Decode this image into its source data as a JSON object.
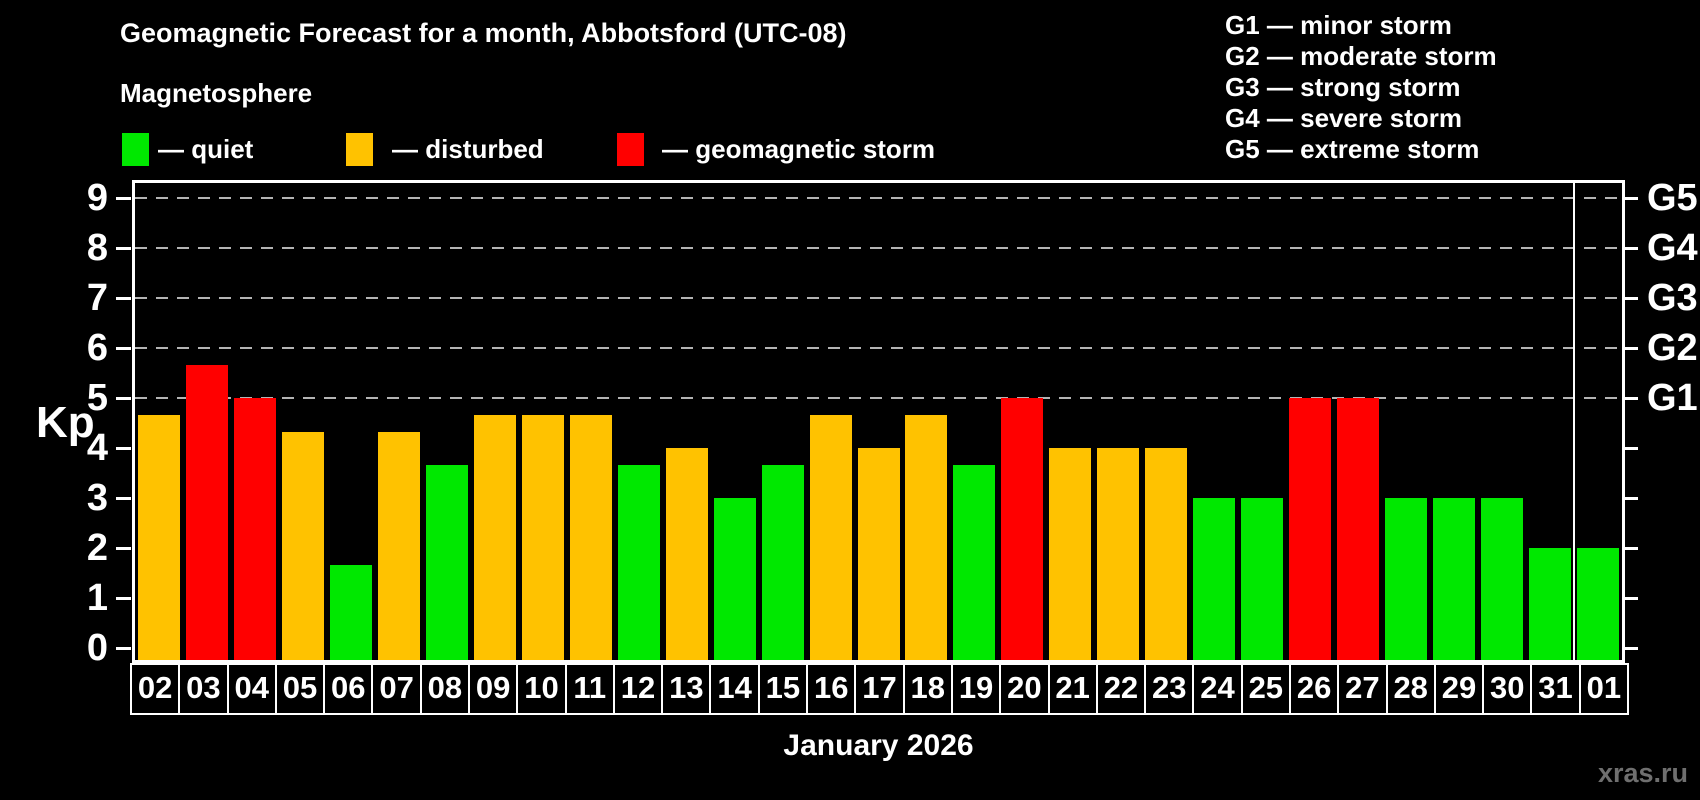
{
  "title": "Geomagnetic Forecast for a month, Abbotsford (UTC-08)",
  "subtitle": "Magnetosphere",
  "legend": {
    "quiet": "— quiet",
    "disturbed": "— disturbed",
    "storm": "— geomagnetic storm"
  },
  "g_legend": [
    "G1 — minor storm",
    "G2 — moderate storm",
    "G3 — strong storm",
    "G4 — severe storm",
    "G5 — extreme storm"
  ],
  "axis": {
    "y_label": "Kp",
    "y_ticks": [
      0,
      1,
      2,
      3,
      4,
      5,
      6,
      7,
      8,
      9
    ],
    "g_ticks": {
      "G1": 5,
      "G2": 6,
      "G3": 7,
      "G4": 8,
      "G5": 9
    }
  },
  "x_label": "January 2026",
  "watermark": "xras.ru",
  "colors": {
    "quiet": "#00e800",
    "disturbed": "#ffc200",
    "storm": "#ff0000",
    "grid": "#b4b4b4",
    "axis": "#ffffff",
    "background": "#000000"
  },
  "chart_data": {
    "type": "bar",
    "title": "Geomagnetic Forecast for a month, Abbotsford (UTC-08)",
    "xlabel": "January 2026",
    "ylabel": "Kp",
    "ylim": [
      0,
      9.33
    ],
    "grid": "dashed horizontal lines at Kp 5,6,7,8,9 (G1–G5)",
    "legend_position": "top",
    "categories": [
      "02",
      "03",
      "04",
      "05",
      "06",
      "07",
      "08",
      "09",
      "10",
      "11",
      "12",
      "13",
      "14",
      "15",
      "16",
      "17",
      "18",
      "19",
      "20",
      "21",
      "22",
      "23",
      "24",
      "25",
      "26",
      "27",
      "28",
      "29",
      "30",
      "31",
      "01"
    ],
    "values": [
      4.67,
      5.67,
      5,
      4.33,
      1.67,
      4.33,
      3.67,
      4.67,
      4.67,
      4.67,
      3.67,
      4,
      3,
      3.67,
      4.67,
      4,
      4.67,
      3.67,
      5,
      4,
      4,
      4,
      3,
      3,
      5,
      5,
      3,
      3,
      3,
      2,
      2
    ],
    "status": [
      "disturbed",
      "storm",
      "storm",
      "disturbed",
      "quiet",
      "disturbed",
      "quiet",
      "disturbed",
      "disturbed",
      "disturbed",
      "quiet",
      "disturbed",
      "quiet",
      "quiet",
      "disturbed",
      "disturbed",
      "disturbed",
      "quiet",
      "storm",
      "disturbed",
      "disturbed",
      "disturbed",
      "quiet",
      "quiet",
      "storm",
      "storm",
      "quiet",
      "quiet",
      "quiet",
      "quiet",
      "quiet"
    ],
    "separator_after_index": 29
  }
}
